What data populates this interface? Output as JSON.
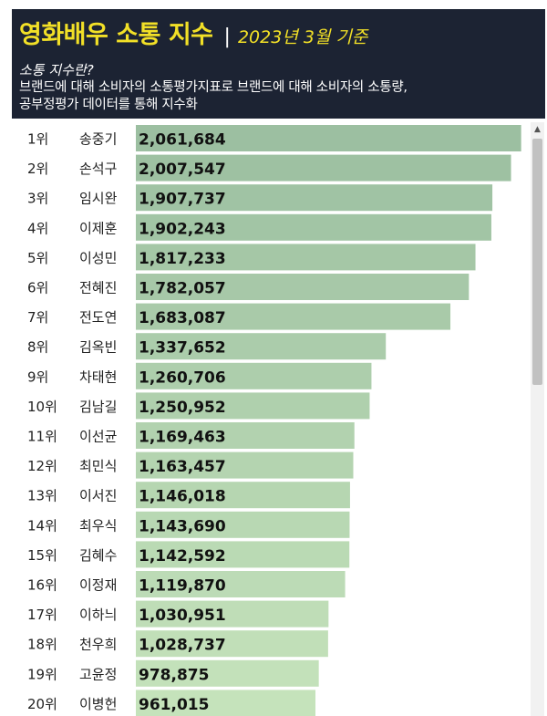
{
  "header": {
    "title": "영화배우 소통 지수",
    "separator": "|",
    "subtitle": "2023년 3월 기준",
    "desc_title": "소통 지수란?",
    "desc_line1": "브랜드에 대해 소비자의 소통평가지표로 브랜드에 대해 소비자의 소통량,",
    "desc_line2": "공부정평가 데이터를 통해 지수화"
  },
  "chart_data": {
    "type": "bar",
    "orientation": "horizontal",
    "xlim": [
      0,
      2200000
    ],
    "categories": [
      "송중기",
      "손석구",
      "임시완",
      "이제훈",
      "이성민",
      "전혜진",
      "전도연",
      "김옥빈",
      "차태현",
      "김남길",
      "이선균",
      "최민식",
      "이서진",
      "최우식",
      "김혜수",
      "이정재",
      "이하늬",
      "천우희",
      "고윤정",
      "이병헌"
    ],
    "ranks": [
      "1위",
      "2위",
      "3위",
      "4위",
      "5위",
      "6위",
      "7위",
      "8위",
      "9위",
      "10위",
      "11위",
      "12위",
      "13위",
      "14위",
      "15위",
      "16위",
      "17위",
      "18위",
      "19위",
      "20위"
    ],
    "values": [
      2061684,
      2007547,
      1907737,
      1902243,
      1817233,
      1782057,
      1683087,
      1337652,
      1260706,
      1250952,
      1169463,
      1163457,
      1146018,
      1143690,
      1142592,
      1119870,
      1030951,
      1028737,
      978875,
      961015
    ],
    "value_labels": [
      "2,061,684",
      "2,007,547",
      "1,907,737",
      "1,902,243",
      "1,817,233",
      "1,782,057",
      "1,683,087",
      "1,337,652",
      "1,260,706",
      "1,250,952",
      "1,169,463",
      "1,163,457",
      "1,146,018",
      "1,143,690",
      "1,142,592",
      "1,119,870",
      "1,030,951",
      "1,028,737",
      "978,875",
      "961,015"
    ],
    "bar_color_dark": "#9cbfa1",
    "bar_color_light": "#c5e3bb"
  },
  "scrollbar": {
    "up_arrow": "▲"
  }
}
